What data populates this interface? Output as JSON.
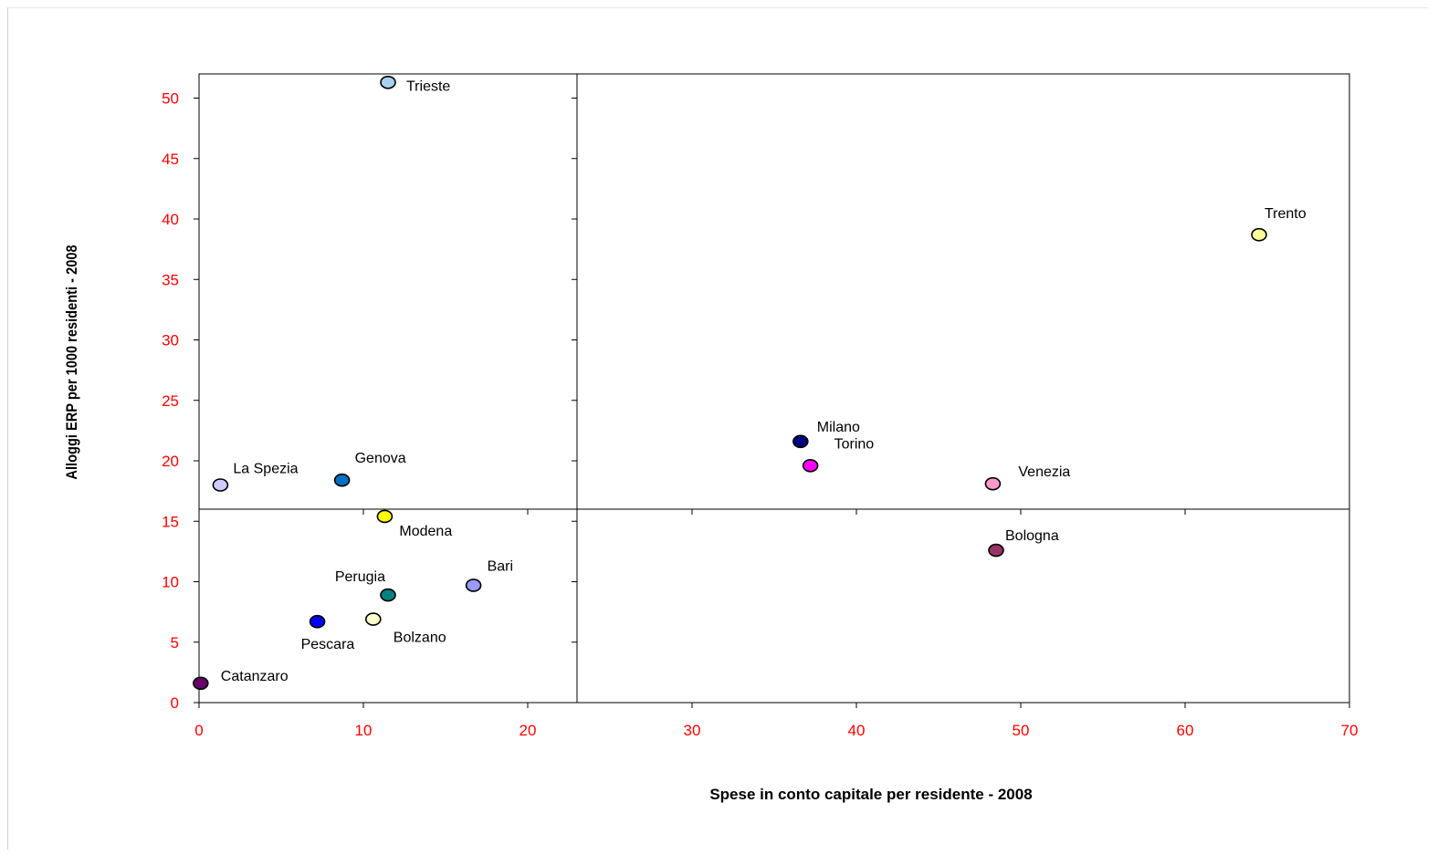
{
  "chart_data": {
    "type": "scatter",
    "title": "",
    "xlabel": "Spese in conto capitale per residente - 2008",
    "ylabel": "Alloggi ERP per 1000 residenti - 2008",
    "xlim": [
      0,
      70
    ],
    "ylim": [
      0,
      52
    ],
    "xticks": [
      "0",
      "10",
      "20",
      "30",
      "40",
      "50",
      "60",
      "70"
    ],
    "yticks": [
      "0",
      "5",
      "10",
      "15",
      "20",
      "25",
      "30",
      "35",
      "40",
      "45",
      "50"
    ],
    "tick_label_color": "#ff0000",
    "grid": false,
    "legend": "none",
    "quadrant_lines": {
      "x": 23,
      "y": 16
    },
    "points": [
      {
        "label": "Trieste",
        "x": 11.5,
        "y": 51.3,
        "color": "#a8d0f0"
      },
      {
        "label": "Trento",
        "x": 64.5,
        "y": 38.7,
        "color": "#ffff99"
      },
      {
        "label": "Milano",
        "x": 36.6,
        "y": 21.6,
        "color": "#000080"
      },
      {
        "label": "Torino",
        "x": 37.2,
        "y": 19.6,
        "color": "#ff00ff"
      },
      {
        "label": "Venezia",
        "x": 48.3,
        "y": 18.1,
        "color": "#ff99cc"
      },
      {
        "label": "La Spezia",
        "x": 1.3,
        "y": 18.0,
        "color": "#ccccff"
      },
      {
        "label": "Genova",
        "x": 8.7,
        "y": 18.4,
        "color": "#0070c0"
      },
      {
        "label": "Modena",
        "x": 11.3,
        "y": 15.4,
        "color": "#ffff00"
      },
      {
        "label": "Bologna",
        "x": 48.5,
        "y": 12.6,
        "color": "#993366"
      },
      {
        "label": "Bari",
        "x": 16.7,
        "y": 9.7,
        "color": "#9999ff"
      },
      {
        "label": "Perugia",
        "x": 11.5,
        "y": 8.9,
        "color": "#008080"
      },
      {
        "label": "Bolzano",
        "x": 10.6,
        "y": 6.9,
        "color": "#ffffcc"
      },
      {
        "label": "Pescara",
        "x": 7.2,
        "y": 6.7,
        "color": "#0000ff"
      },
      {
        "label": "Catanzaro",
        "x": 0.1,
        "y": 1.6,
        "color": "#660066"
      }
    ]
  }
}
